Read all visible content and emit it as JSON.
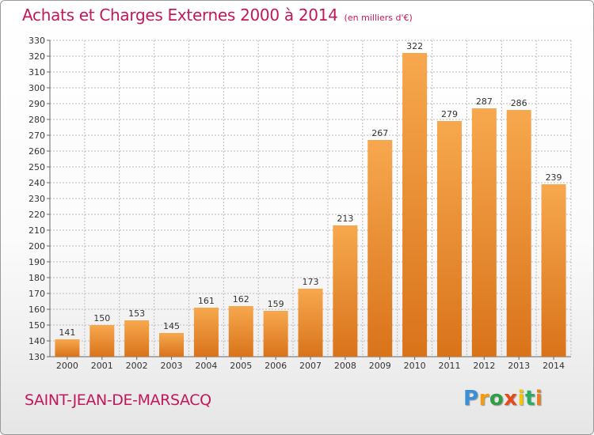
{
  "header": {
    "title": "Achats et Charges Externes 2000 à 2014",
    "subtitle": "(en milliers d'€)"
  },
  "footer": {
    "town": "SAINT-JEAN-DE-MARSACQ",
    "logo_letters": [
      "P",
      "r",
      "o",
      "x",
      "i",
      "t",
      "i"
    ],
    "logo_colors": [
      "#3b8fd6",
      "#f39c12",
      "#2ea043",
      "#e64a19",
      "#f1c40f",
      "#27ae60",
      "#e67e22"
    ]
  },
  "colors": {
    "bar_light": "#f7a84e",
    "bar_dark": "#d9731a",
    "title": "#c2185b",
    "grid": "#bbbbbb"
  },
  "chart_data": {
    "type": "bar",
    "categories": [
      "2000",
      "2001",
      "2002",
      "2003",
      "2004",
      "2005",
      "2006",
      "2007",
      "2008",
      "2009",
      "2010",
      "2011",
      "2012",
      "2013",
      "2014"
    ],
    "values": [
      141,
      150,
      153,
      145,
      161,
      162,
      159,
      173,
      213,
      267,
      322,
      279,
      287,
      286,
      239
    ],
    "ylim": [
      130,
      330
    ],
    "yticks": [
      130,
      140,
      150,
      160,
      170,
      180,
      190,
      200,
      210,
      220,
      230,
      240,
      250,
      260,
      270,
      280,
      290,
      300,
      310,
      320,
      330
    ],
    "grid": true,
    "title": "Achats et Charges Externes 2000 à 2014",
    "xlabel": "",
    "ylabel": ""
  }
}
